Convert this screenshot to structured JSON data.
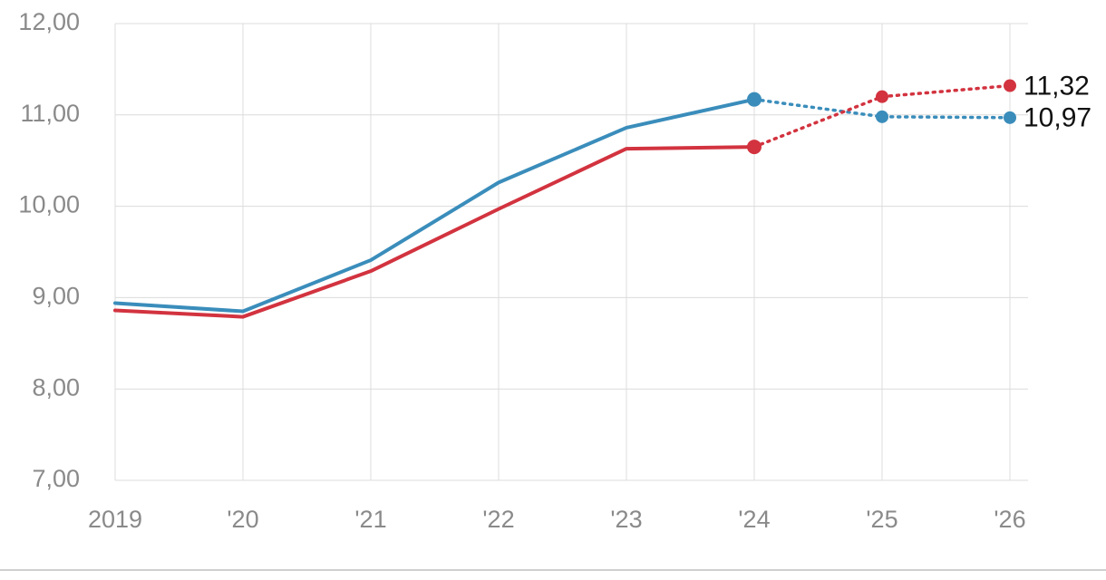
{
  "chart_data": {
    "type": "line",
    "x": [
      "2019",
      "'20",
      "'21",
      "'22",
      "'23",
      "'24",
      "'25",
      "'26"
    ],
    "ylim": [
      7,
      12
    ],
    "yticks": [
      "12,00",
      "11,00",
      "10,00",
      "9,00",
      "8,00",
      "7,00"
    ],
    "grid": true,
    "series": [
      {
        "color": "#3a8dbb",
        "values": [
          8.94,
          8.85,
          9.41,
          10.26,
          10.86,
          11.17,
          10.98,
          10.97
        ],
        "forecast_from_index": 5,
        "end_label": "10,97"
      },
      {
        "color": "#d2333f",
        "values": [
          8.86,
          8.79,
          9.29,
          9.97,
          10.63,
          10.65,
          11.2,
          11.32
        ],
        "forecast_from_index": 5,
        "end_label": "11,32"
      }
    ]
  }
}
